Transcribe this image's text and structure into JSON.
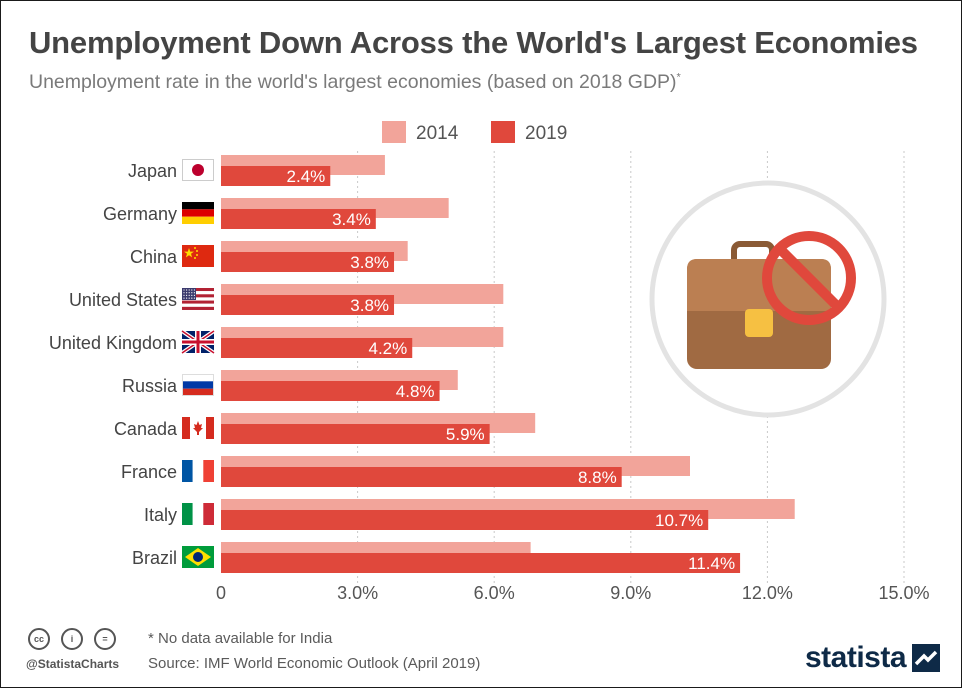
{
  "title": "Unemployment Down Across the World's Largest Economies",
  "subtitle": "Unemployment rate in the world's largest economies (based on 2018 GDP)",
  "subtitle_marker": "*",
  "footnote": "* No data available for India",
  "source": "Source: IMF World Economic Outlook (April 2019)",
  "handle": "@StatistaCharts",
  "brand": "statista",
  "license_icons": [
    "cc",
    "i",
    "="
  ],
  "chart_data": {
    "type": "bar",
    "orientation": "horizontal",
    "categories": [
      "Japan",
      "Germany",
      "China",
      "United States",
      "United Kingdom",
      "Russia",
      "Canada",
      "France",
      "Italy",
      "Brazil"
    ],
    "series": [
      {
        "name": "2014",
        "color": "#f2a49a",
        "values": [
          3.6,
          5.0,
          4.1,
          6.2,
          6.2,
          5.2,
          6.9,
          10.3,
          12.6,
          6.8
        ]
      },
      {
        "name": "2019",
        "color": "#e0483c",
        "values": [
          2.4,
          3.4,
          3.8,
          3.8,
          4.2,
          4.8,
          5.9,
          8.8,
          10.7,
          11.4
        ],
        "labels": [
          "2.4%",
          "3.4%",
          "3.8%",
          "3.8%",
          "4.2%",
          "4.8%",
          "5.9%",
          "8.8%",
          "10.7%",
          "11.4%"
        ]
      }
    ],
    "xlim": [
      0,
      15
    ],
    "xticks": [
      0,
      3,
      6,
      9,
      12,
      15
    ],
    "xtick_labels": [
      "0",
      "3.0%",
      "6.0%",
      "9.0%",
      "12.0%",
      "15.0%"
    ],
    "grid": true,
    "legend": "top"
  },
  "icons": {
    "flags": [
      "japan-flag-icon",
      "germany-flag-icon",
      "china-flag-icon",
      "usa-flag-icon",
      "uk-flag-icon",
      "russia-flag-icon",
      "canada-flag-icon",
      "france-flag-icon",
      "italy-flag-icon",
      "brazil-flag-icon"
    ],
    "illustration": "briefcase-no-symbol-icon"
  }
}
